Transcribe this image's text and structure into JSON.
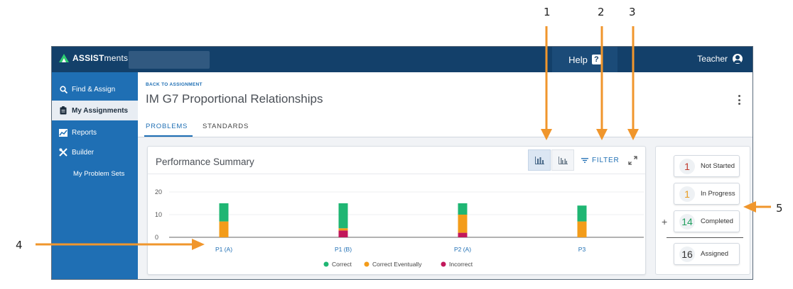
{
  "annotations": {
    "callouts": [
      "1",
      "2",
      "3",
      "4",
      "5"
    ],
    "arrow_color": "#f0962c"
  },
  "app": {
    "brand": {
      "bold": "ASSIST",
      "light": "ments"
    },
    "help_label": "Help",
    "help_icon": "?",
    "user_label": "Teacher"
  },
  "sidebar": {
    "items": [
      {
        "label": "Find & Assign",
        "icon": "search-icon"
      },
      {
        "label": "My Assignments",
        "icon": "clipboard-icon"
      },
      {
        "label": "Reports",
        "icon": "chart-icon"
      },
      {
        "label": "Builder",
        "icon": "tools-icon"
      },
      {
        "label": "My Problem Sets",
        "icon": ""
      }
    ],
    "active_index": 1
  },
  "header": {
    "back_link": "BACK TO ASSIGNMENT",
    "title": "IM G7 Proportional Relationships",
    "tabs": [
      "PROBLEMS",
      "STANDARDS"
    ]
  },
  "performance": {
    "title": "Performance Summary",
    "filter_label": "FILTER"
  },
  "chart_data": {
    "type": "bar",
    "stacked": true,
    "categories": [
      "P1 (A)",
      "P1 (B)",
      "P2 (A)",
      "P3"
    ],
    "series": [
      {
        "name": "Incorrect",
        "color": "#c2185b",
        "values": [
          0,
          3,
          2,
          0
        ]
      },
      {
        "name": "Correct Eventually",
        "color": "#f39c1a",
        "values": [
          7,
          1,
          8,
          7
        ]
      },
      {
        "name": "Correct",
        "color": "#1fb673",
        "values": [
          8,
          11,
          5,
          7
        ]
      }
    ],
    "legend": [
      "Correct",
      "Correct Eventually",
      "Incorrect"
    ],
    "yticks": [
      "20",
      "10",
      "0"
    ],
    "ylim": [
      0,
      20
    ],
    "grid": true
  },
  "status": {
    "items": [
      {
        "count": "1",
        "label": "Not Started",
        "color": "#c0392b"
      },
      {
        "count": "1",
        "label": "In Progress",
        "color": "#e89b20"
      },
      {
        "count": "14",
        "label": "Completed",
        "color": "#22a060"
      },
      {
        "count": "16",
        "label": "Assigned",
        "color": "#333333"
      }
    ],
    "plus": "+"
  }
}
